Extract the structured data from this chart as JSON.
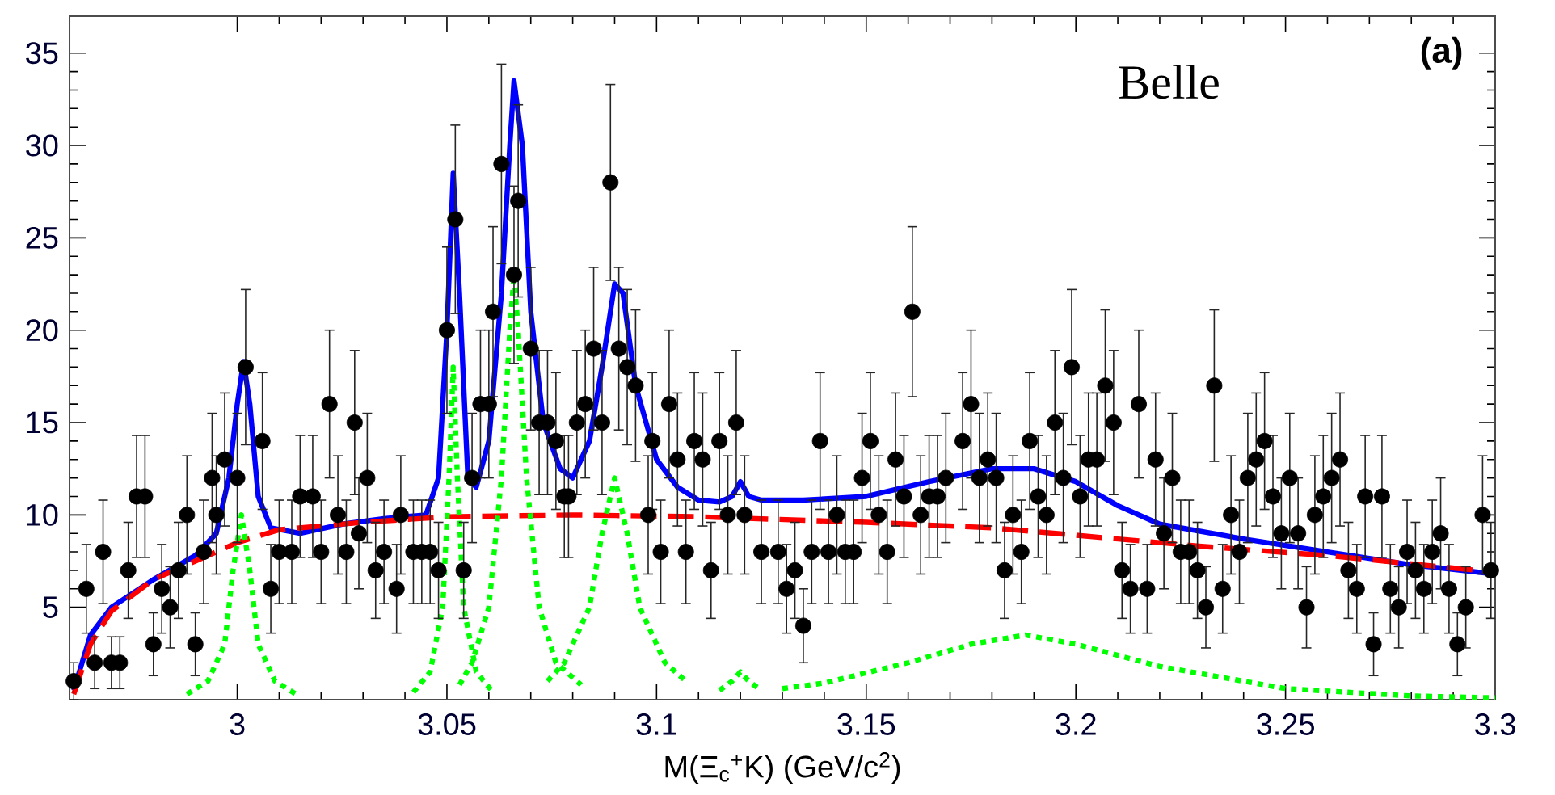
{
  "chart_data": {
    "type": "line",
    "xlabel": "M(Ξ$_{c}$$^{+}$K) (GeV/c$^{2}$)",
    "annotations": [
      "Belle",
      "(a)"
    ],
    "xlim": [
      2.96,
      3.3
    ],
    "ylim": [
      0,
      37
    ],
    "xticks": [
      3,
      3.05,
      3.1,
      3.15,
      3.2,
      3.25,
      3.3
    ],
    "yticks": [
      5,
      10,
      15,
      20,
      25,
      30,
      35
    ],
    "grid": false,
    "series": [
      {
        "type": "scatter",
        "marker": "circle",
        "color": "#000000",
        "x": [
          2.961,
          2.964,
          2.966,
          2.968,
          2.97,
          2.972,
          2.974,
          2.976,
          2.978,
          2.98,
          2.982,
          2.984,
          2.986,
          2.988,
          2.99,
          2.992,
          2.994,
          2.995,
          2.997,
          3.0,
          3.002,
          3.006,
          3.008,
          3.01,
          3.013,
          3.015,
          3.018,
          3.02,
          3.022,
          3.024,
          3.026,
          3.028,
          3.029,
          3.031,
          3.033,
          3.035,
          3.038,
          3.039,
          3.042,
          3.044,
          3.046,
          3.048,
          3.05,
          3.052,
          3.054,
          3.056,
          3.058,
          3.06,
          3.061,
          3.063,
          3.066,
          3.067,
          3.07,
          3.072,
          3.074,
          3.076,
          3.078,
          3.079,
          3.081,
          3.083,
          3.085,
          3.087,
          3.089,
          3.091,
          3.093,
          3.095,
          3.098,
          3.099,
          3.101,
          3.103,
          3.105,
          3.107,
          3.109,
          3.111,
          3.113,
          3.115,
          3.117,
          3.119,
          3.121,
          3.125,
          3.129,
          3.131,
          3.133,
          3.135,
          3.137,
          3.139,
          3.141,
          3.143,
          3.145,
          3.147,
          3.149,
          3.151,
          3.153,
          3.155,
          3.157,
          3.159,
          3.161,
          3.163,
          3.165,
          3.167,
          3.169,
          3.173,
          3.175,
          3.177,
          3.179,
          3.181,
          3.183,
          3.185,
          3.187,
          3.189,
          3.191,
          3.193,
          3.195,
          3.197,
          3.199,
          3.201,
          3.203,
          3.205,
          3.207,
          3.209,
          3.211,
          3.213,
          3.215,
          3.217,
          3.219,
          3.221,
          3.223,
          3.225,
          3.227,
          3.229,
          3.231,
          3.233,
          3.235,
          3.237,
          3.239,
          3.241,
          3.243,
          3.245,
          3.247,
          3.249,
          3.251,
          3.253,
          3.255,
          3.257,
          3.259,
          3.261,
          3.263,
          3.265,
          3.267,
          3.269,
          3.271,
          3.273,
          3.275,
          3.277,
          3.279,
          3.281,
          3.283,
          3.285,
          3.287,
          3.289,
          3.291,
          3.293,
          3.297,
          3.299
        ],
        "values": [
          1,
          6,
          2,
          8,
          2,
          2,
          7,
          11,
          11,
          3,
          6,
          5,
          7,
          10,
          3,
          8,
          12,
          10,
          13,
          12,
          18,
          14,
          6,
          8,
          8,
          11,
          11,
          8,
          16,
          10,
          8,
          15,
          9,
          12,
          7,
          8,
          6,
          10,
          8,
          8,
          8,
          7,
          20,
          26,
          7,
          12,
          16,
          16,
          21,
          29,
          23,
          27,
          19,
          15,
          15,
          14,
          11,
          11,
          15,
          16,
          19,
          15,
          28,
          19,
          18,
          17,
          10,
          14,
          8,
          16,
          13,
          8,
          14,
          13,
          7,
          14,
          10,
          15,
          10,
          8,
          8,
          6,
          7,
          4,
          8,
          14,
          8,
          10,
          8,
          8,
          12,
          14,
          10,
          8,
          13,
          11,
          21,
          10,
          11,
          11,
          12,
          14,
          16,
          12,
          13,
          12,
          7,
          10,
          8,
          14,
          11,
          10,
          15,
          12,
          18,
          11,
          13,
          13,
          17,
          15,
          7,
          6,
          16,
          6,
          13,
          9,
          12,
          8,
          8,
          7,
          5,
          17,
          6,
          10,
          8,
          12,
          13,
          14,
          11,
          9,
          12,
          9,
          5,
          10,
          11,
          12,
          13,
          7,
          6,
          11,
          3,
          11,
          6,
          5,
          8,
          7,
          6,
          8,
          9,
          6,
          3,
          5,
          10,
          7
        ],
        "errors": [
          1,
          2.4,
          1.4,
          2.8,
          1.4,
          1.4,
          2.6,
          3.3,
          3.3,
          1.7,
          2.4,
          2.2,
          2.6,
          3.2,
          1.7,
          2.8,
          3.5,
          3.2,
          3.6,
          3.5,
          4.2,
          3.7,
          2.4,
          2.8,
          2.8,
          3.3,
          3.3,
          2.8,
          4,
          3.2,
          2.8,
          3.9,
          3,
          3.5,
          2.6,
          2.8,
          2.4,
          3.2,
          2.8,
          2.8,
          2.8,
          2.6,
          4.5,
          5.1,
          2.6,
          3.5,
          4,
          4,
          4.6,
          5.4,
          4.8,
          5.2,
          4.4,
          3.9,
          3.9,
          3.7,
          3.3,
          3.3,
          3.9,
          4,
          4.4,
          3.9,
          5.3,
          4.4,
          4.2,
          4.1,
          3.2,
          3.7,
          2.8,
          4,
          3.6,
          2.8,
          3.7,
          3.6,
          2.6,
          3.7,
          3.2,
          3.9,
          3.2,
          2.8,
          2.8,
          2.4,
          2.6,
          2,
          2.8,
          3.7,
          2.8,
          3.2,
          2.8,
          2.8,
          3.5,
          3.7,
          3.2,
          2.8,
          3.6,
          3.3,
          4.6,
          3.2,
          3.3,
          3.3,
          3.5,
          3.7,
          4,
          3.5,
          3.6,
          3.5,
          2.6,
          3.2,
          2.8,
          3.7,
          3.3,
          3.2,
          3.9,
          3.5,
          4.2,
          3.3,
          3.6,
          3.6,
          4.1,
          3.9,
          2.6,
          2.4,
          4,
          2.4,
          3.6,
          3,
          3.5,
          2.8,
          2.8,
          2.6,
          2.2,
          4.1,
          2.4,
          3.2,
          2.8,
          3.5,
          3.6,
          3.7,
          3.3,
          3,
          3.5,
          3,
          2.2,
          3.2,
          3.3,
          3.5,
          3.6,
          2.6,
          2.4,
          3.3,
          1.7,
          3.3,
          2.4,
          2.2,
          2.8,
          2.6,
          2.4,
          2.8,
          3,
          2.4,
          1.7,
          2.2,
          3.2,
          2.6
        ]
      },
      {
        "line_style": "solid",
        "color": "#0000ff",
        "x": [
          2.961,
          2.965,
          2.97,
          2.98,
          2.99,
          2.995,
          2.998,
          3.0,
          3.0015,
          3.003,
          3.005,
          3.008,
          3.015,
          3.025,
          3.035,
          3.045,
          3.048,
          3.05,
          3.0515,
          3.053,
          3.055,
          3.057,
          3.06,
          3.063,
          3.065,
          3.066,
          3.068,
          3.07,
          3.073,
          3.077,
          3.08,
          3.084,
          3.087,
          3.09,
          3.092,
          3.095,
          3.1,
          3.105,
          3.11,
          3.115,
          3.118,
          3.12,
          3.122,
          3.125,
          3.135,
          3.15,
          3.165,
          3.18,
          3.19,
          3.2,
          3.21,
          3.22,
          3.24,
          3.26,
          3.28,
          3.3
        ],
        "values": [
          0.5,
          3.5,
          5,
          6.5,
          7.8,
          9,
          12,
          16,
          18.3,
          16,
          11,
          9.3,
          9,
          9.5,
          9.8,
          10,
          12,
          20,
          28.5,
          22,
          12,
          11.5,
          14,
          22,
          30,
          33.5,
          30,
          21,
          15,
          12.5,
          12,
          14,
          18,
          22.5,
          22,
          17,
          13,
          11.5,
          10.8,
          10.7,
          11,
          11.8,
          11,
          10.8,
          10.8,
          11,
          11.8,
          12.5,
          12.5,
          11.8,
          10.5,
          9.5,
          8.7,
          8,
          7.3,
          6.8
        ]
      },
      {
        "line_style": "dashed",
        "color": "#ff0000",
        "x": [
          2.961,
          2.965,
          2.97,
          2.98,
          2.99,
          3.0,
          3.01,
          3.03,
          3.05,
          3.08,
          3.11,
          3.15,
          3.18,
          3.2,
          3.23,
          3.26,
          3.3
        ],
        "values": [
          0.3,
          3,
          4.8,
          6.5,
          7.5,
          8.5,
          9.2,
          9.6,
          9.9,
          10,
          9.9,
          9.6,
          9.3,
          8.9,
          8.3,
          7.8,
          6.9
        ]
      },
      {
        "line_style": "dotted",
        "color": "#00ff00",
        "x": [
          2.988,
          2.993,
          2.997,
          2.999,
          3.001,
          3.003,
          3.005,
          3.009,
          3.014
        ],
        "values": [
          0.3,
          1,
          3,
          7,
          10,
          7,
          3,
          1,
          0.3
        ]
      },
      {
        "line_style": "dotted",
        "color": "#00ff00",
        "x": [
          3.042,
          3.046,
          3.049,
          3.0505,
          3.0515,
          3.0525,
          3.054,
          3.057,
          3.061
        ],
        "values": [
          0.4,
          1.5,
          5,
          12,
          18,
          12,
          5,
          1.5,
          0.4
        ]
      },
      {
        "line_style": "dotted",
        "color": "#00ff00",
        "x": [
          3.053,
          3.056,
          3.06,
          3.063,
          3.065,
          3.066,
          3.067,
          3.069,
          3.072,
          3.076,
          3.082
        ],
        "values": [
          0.8,
          2,
          5,
          12,
          20,
          23,
          20,
          12,
          5,
          2,
          0.8
        ]
      },
      {
        "line_style": "dotted",
        "color": "#00ff00",
        "x": [
          3.074,
          3.078,
          3.084,
          3.087,
          3.09,
          3.093,
          3.096,
          3.102,
          3.107
        ],
        "values": [
          1,
          2,
          5,
          9,
          12,
          9,
          5,
          2,
          1
        ]
      },
      {
        "line_style": "dotted",
        "color": "#00ff00",
        "x": [
          3.115,
          3.118,
          3.12,
          3.122,
          3.125
        ],
        "values": [
          0.5,
          1,
          1.5,
          1,
          0.5
        ]
      },
      {
        "line_style": "dotted",
        "color": "#00ff00",
        "x": [
          3.13,
          3.14,
          3.16,
          3.175,
          3.188,
          3.2,
          3.22,
          3.25,
          3.28,
          3.3
        ],
        "values": [
          0.6,
          0.9,
          2,
          3,
          3.5,
          3,
          1.8,
          0.6,
          0.2,
          0.1
        ]
      }
    ]
  }
}
